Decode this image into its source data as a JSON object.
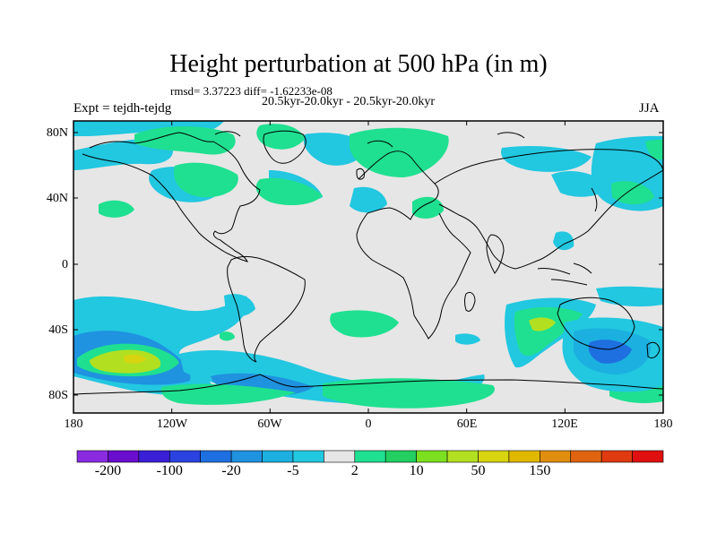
{
  "title": "Height perturbation at 500 hPa (in m)",
  "stats": "rmsd= 3.37223 diff= -1.62233e-08",
  "subtitle": "20.5kyr-20.0kyr - 20.5kyr-20.0kyr",
  "experiment": "Expt = tejdh-tejdg",
  "season": "JJA",
  "lat_labels": [
    "80N",
    "40N",
    "0",
    "40S",
    "80S"
  ],
  "lon_labels": [
    "180",
    "120W",
    "60W",
    "0",
    "60E",
    "120E",
    "180"
  ],
  "colorbar": {
    "colors": [
      "#8a2be2",
      "#6a0dcd",
      "#3a1fd6",
      "#2a43e0",
      "#1e6fe0",
      "#1f92e0",
      "#1bb0e0",
      "#22c7e0",
      "#e6e6e6",
      "#1fe090",
      "#22cf60",
      "#7ce020",
      "#b2e020",
      "#d8d410",
      "#e0b800",
      "#e08e10",
      "#e06410",
      "#e03a10",
      "#e01010"
    ],
    "tick_labels": [
      "-200",
      "-100",
      "-20",
      "-5",
      "2",
      "10",
      "50",
      "150"
    ],
    "tick_levels": [
      -200,
      -100,
      -20,
      -5,
      2,
      10,
      50,
      150
    ]
  },
  "map_colors": {
    "background": "#e6e6e6",
    "blue": "#22c7e0",
    "mid_blue": "#1bb0e0",
    "deep_blue": "#1f92e0",
    "dark_blue": "#1e6fe0",
    "green": "#1fe090",
    "bright_green": "#22cf60",
    "yellow_green": "#b2e020",
    "yellow": "#d8d410"
  }
}
